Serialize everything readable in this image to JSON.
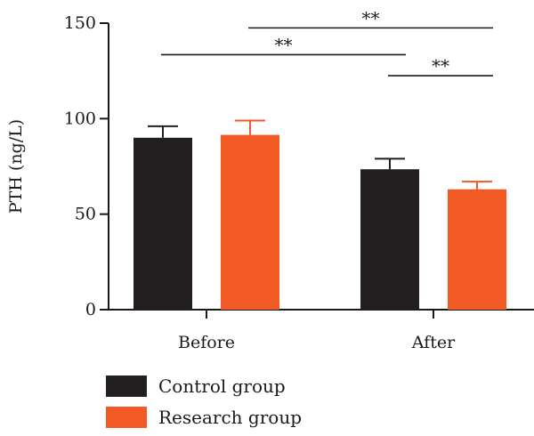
{
  "chart_data": {
    "type": "bar",
    "title": "",
    "xlabel": "",
    "ylabel": "PTH (ng/L)",
    "ylim": [
      0,
      150
    ],
    "yticks": [
      0,
      50,
      100,
      150
    ],
    "categories": [
      "Before",
      "After"
    ],
    "series": [
      {
        "name": "Control group",
        "color": "#231f20",
        "values": [
          90,
          73.5
        ],
        "errors": [
          6,
          5.5
        ]
      },
      {
        "name": "Research group",
        "color": "#f15a24",
        "values": [
          91.5,
          63
        ],
        "errors": [
          7.5,
          4
        ]
      }
    ],
    "legend_position": "bottom-left",
    "significance": [
      {
        "from": "Before|Control group",
        "to": "After|Control group",
        "label": "**",
        "y": 133.5
      },
      {
        "from": "Before|Research group",
        "to": "After|Research group",
        "label": "**",
        "y": 147.5
      },
      {
        "from": "After|Control group",
        "to": "After|Research group",
        "label": "**",
        "y": 122.5
      }
    ]
  }
}
